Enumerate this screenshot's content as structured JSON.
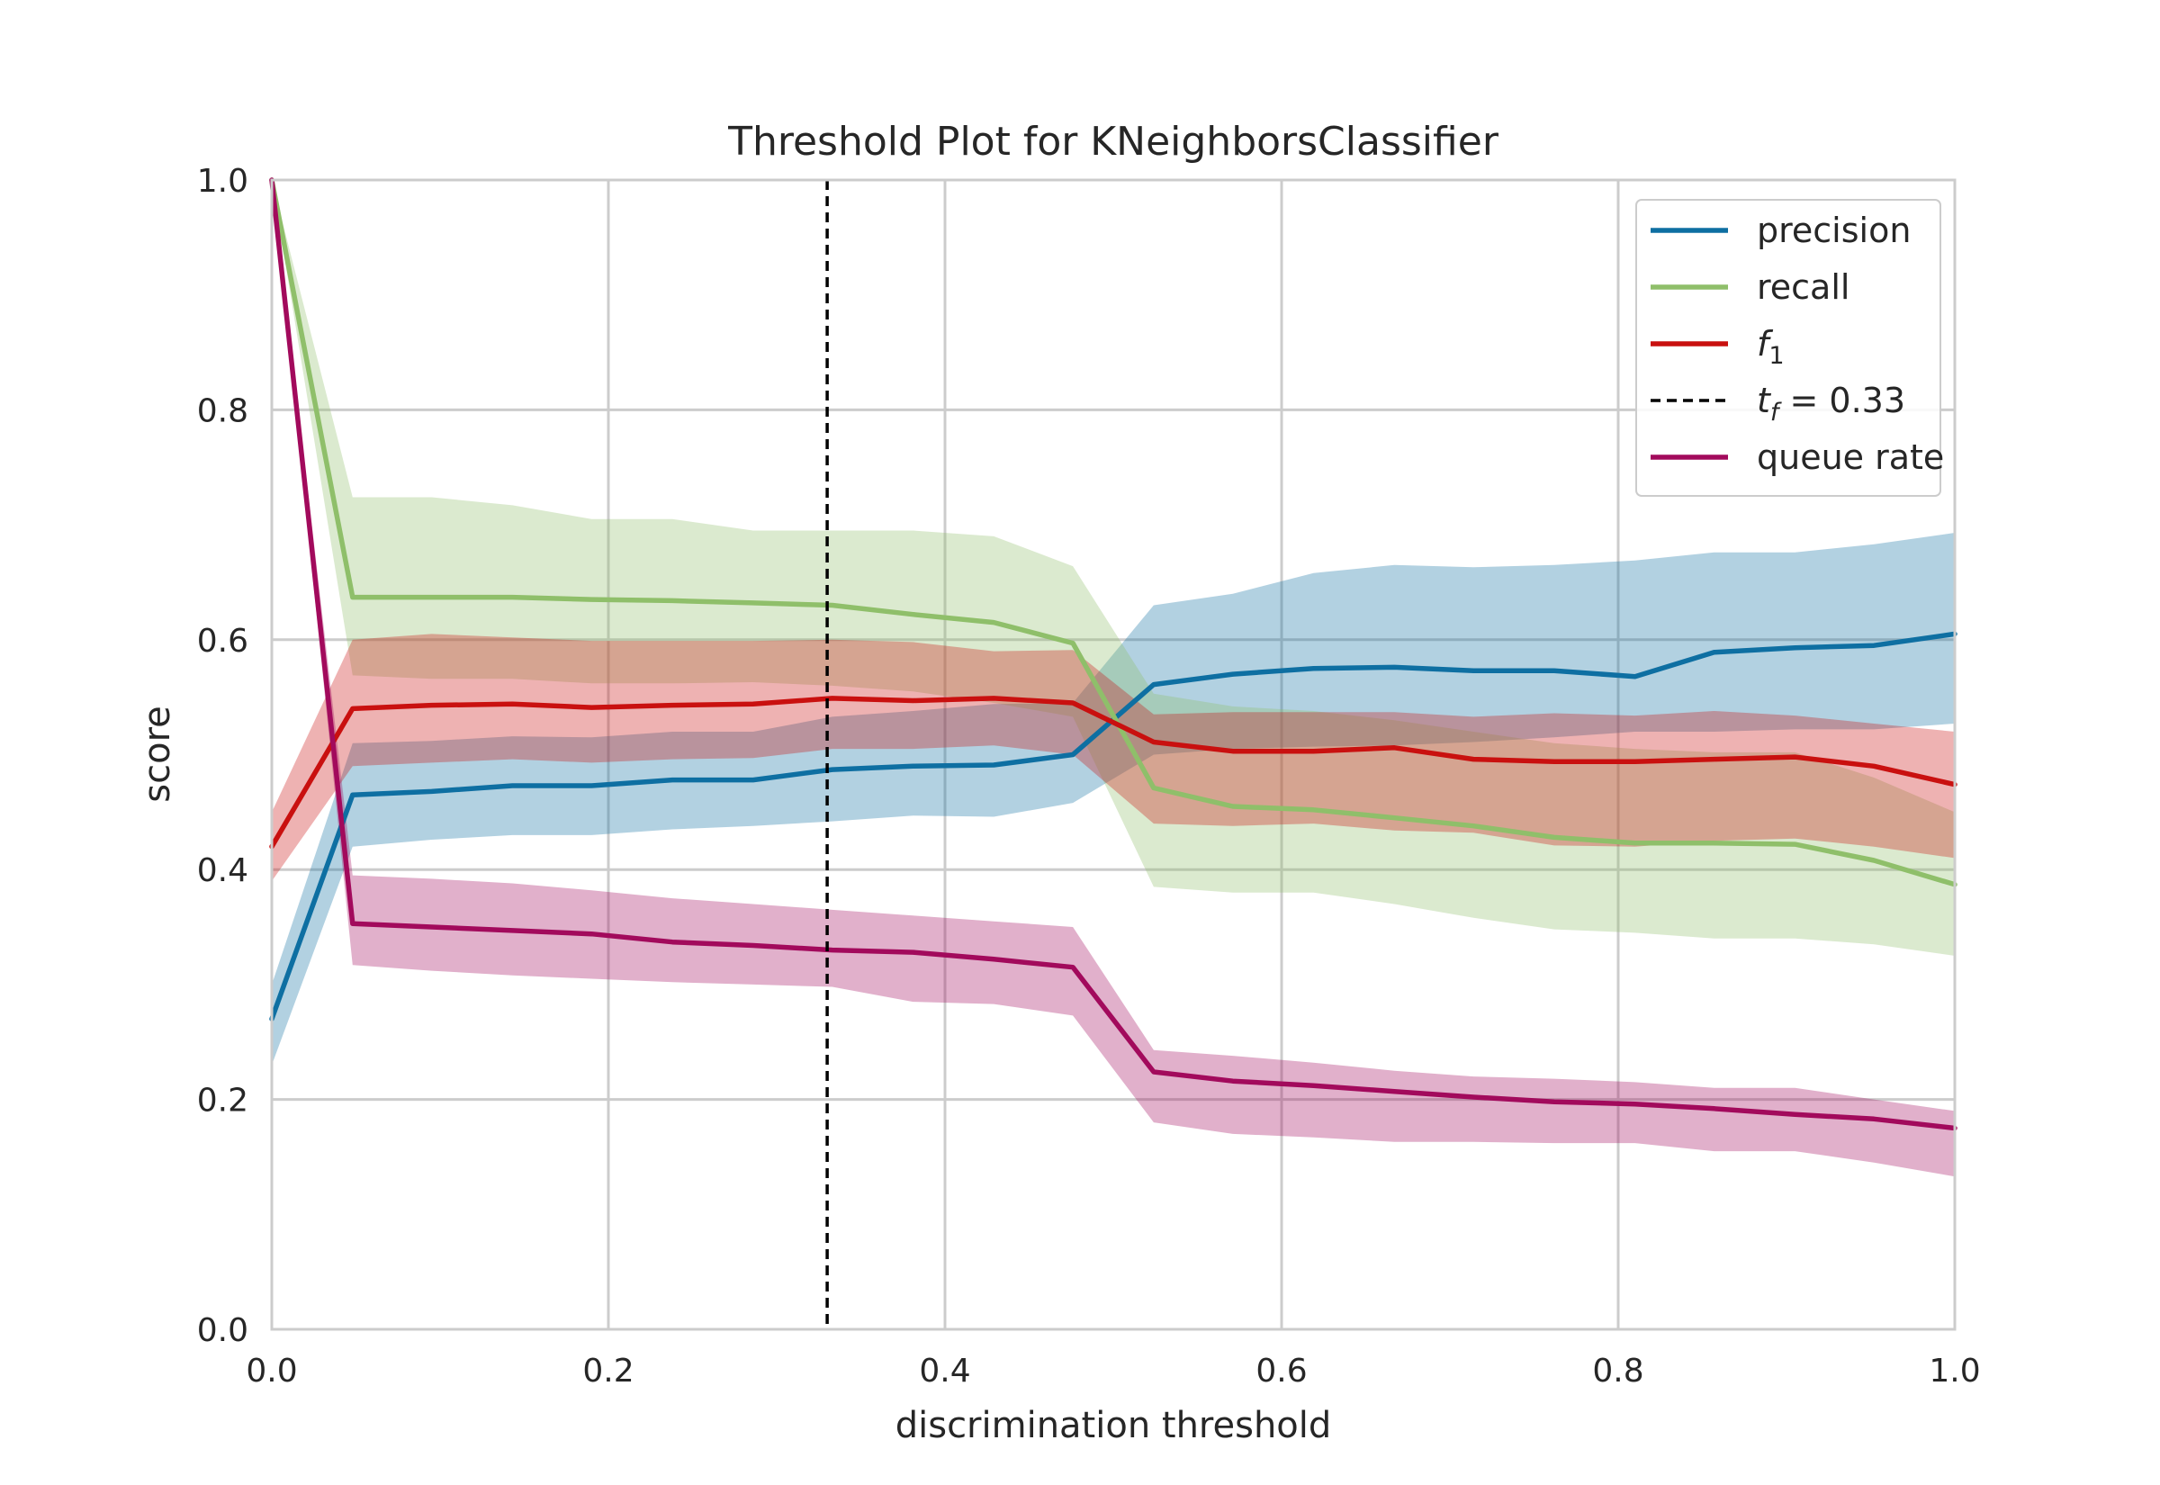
{
  "chart_data": {
    "type": "line",
    "title": "Threshold Plot for KNeighborsClassifier",
    "xlabel": "discrimination threshold",
    "ylabel": "score",
    "xlim": [
      0.0,
      1.0
    ],
    "ylim": [
      0.0,
      1.0
    ],
    "xticks": [
      0.0,
      0.2,
      0.4,
      0.6,
      0.8,
      1.0
    ],
    "yticks": [
      0.0,
      0.2,
      0.4,
      0.6,
      0.8,
      1.0
    ],
    "xtick_labels": [
      "0.0",
      "0.2",
      "0.4",
      "0.6",
      "0.8",
      "1.0"
    ],
    "ytick_labels": [
      "0.0",
      "0.2",
      "0.4",
      "0.6",
      "0.8",
      "1.0"
    ],
    "grid": true,
    "legend_position": "top-right",
    "x": [
      0.0,
      0.048,
      0.095,
      0.143,
      0.19,
      0.238,
      0.286,
      0.333,
      0.381,
      0.429,
      0.476,
      0.524,
      0.571,
      0.619,
      0.667,
      0.714,
      0.762,
      0.81,
      0.857,
      0.905,
      0.952,
      1.0
    ],
    "series": [
      {
        "name": "precision",
        "color": "#0e6fa2",
        "values": [
          0.27,
          0.465,
          0.468,
          0.473,
          0.473,
          0.478,
          0.478,
          0.487,
          0.49,
          0.491,
          0.5,
          0.561,
          0.57,
          0.575,
          0.576,
          0.573,
          0.573,
          0.568,
          0.589,
          0.593,
          0.595,
          0.605
        ],
        "upper": [
          0.3,
          0.51,
          0.512,
          0.516,
          0.515,
          0.52,
          0.52,
          0.533,
          0.538,
          0.544,
          0.545,
          0.63,
          0.64,
          0.658,
          0.665,
          0.663,
          0.665,
          0.669,
          0.676,
          0.676,
          0.683,
          0.693
        ],
        "lower": [
          0.23,
          0.42,
          0.426,
          0.43,
          0.43,
          0.435,
          0.438,
          0.442,
          0.447,
          0.446,
          0.458,
          0.5,
          0.505,
          0.507,
          0.508,
          0.511,
          0.515,
          0.52,
          0.52,
          0.522,
          0.522,
          0.527
        ]
      },
      {
        "name": "recall",
        "color": "#8fbf6a",
        "values": [
          1.0,
          0.637,
          0.637,
          0.637,
          0.635,
          0.634,
          0.632,
          0.63,
          0.622,
          0.615,
          0.597,
          0.471,
          0.455,
          0.452,
          0.445,
          0.438,
          0.428,
          0.423,
          0.423,
          0.422,
          0.408,
          0.387
        ],
        "upper": [
          1.0,
          0.724,
          0.724,
          0.717,
          0.705,
          0.705,
          0.695,
          0.695,
          0.695,
          0.69,
          0.664,
          0.553,
          0.542,
          0.538,
          0.53,
          0.52,
          0.51,
          0.505,
          0.502,
          0.502,
          0.48,
          0.45
        ],
        "lower": [
          1.0,
          0.569,
          0.566,
          0.566,
          0.562,
          0.562,
          0.563,
          0.56,
          0.555,
          0.545,
          0.533,
          0.385,
          0.38,
          0.38,
          0.37,
          0.358,
          0.348,
          0.345,
          0.34,
          0.34,
          0.335,
          0.325
        ]
      },
      {
        "name": "f1",
        "label": "f",
        "label_sub": "1",
        "color": "#c9100f",
        "values": [
          0.42,
          0.54,
          0.543,
          0.544,
          0.541,
          0.543,
          0.544,
          0.549,
          0.547,
          0.549,
          0.545,
          0.511,
          0.503,
          0.503,
          0.506,
          0.496,
          0.494,
          0.494,
          0.496,
          0.498,
          0.49,
          0.474
        ],
        "upper": [
          0.45,
          0.6,
          0.605,
          0.602,
          0.599,
          0.599,
          0.599,
          0.6,
          0.598,
          0.59,
          0.591,
          0.535,
          0.537,
          0.537,
          0.537,
          0.533,
          0.536,
          0.534,
          0.538,
          0.534,
          0.527,
          0.52
        ],
        "lower": [
          0.39,
          0.49,
          0.493,
          0.496,
          0.493,
          0.496,
          0.497,
          0.505,
          0.505,
          0.508,
          0.5,
          0.44,
          0.438,
          0.44,
          0.434,
          0.432,
          0.421,
          0.42,
          0.425,
          0.427,
          0.42,
          0.41
        ]
      },
      {
        "name": "queue rate",
        "color": "#a20a5c",
        "values": [
          1.0,
          0.353,
          0.35,
          0.347,
          0.344,
          0.337,
          0.334,
          0.33,
          0.328,
          0.322,
          0.315,
          0.224,
          0.216,
          0.212,
          0.207,
          0.202,
          0.198,
          0.196,
          0.192,
          0.187,
          0.183,
          0.175
        ],
        "upper": [
          1.0,
          0.395,
          0.392,
          0.388,
          0.382,
          0.375,
          0.37,
          0.365,
          0.36,
          0.355,
          0.35,
          0.243,
          0.238,
          0.232,
          0.225,
          0.22,
          0.218,
          0.215,
          0.21,
          0.21,
          0.2,
          0.19
        ],
        "lower": [
          1.0,
          0.317,
          0.312,
          0.308,
          0.305,
          0.302,
          0.3,
          0.298,
          0.285,
          0.283,
          0.273,
          0.18,
          0.17,
          0.167,
          0.163,
          0.163,
          0.162,
          0.162,
          0.155,
          0.155,
          0.145,
          0.133
        ]
      }
    ],
    "threshold": {
      "value": 0.33,
      "label_t": "t",
      "label_sub": "f",
      "label_rest": " = 0.33",
      "color": "#000000"
    }
  }
}
